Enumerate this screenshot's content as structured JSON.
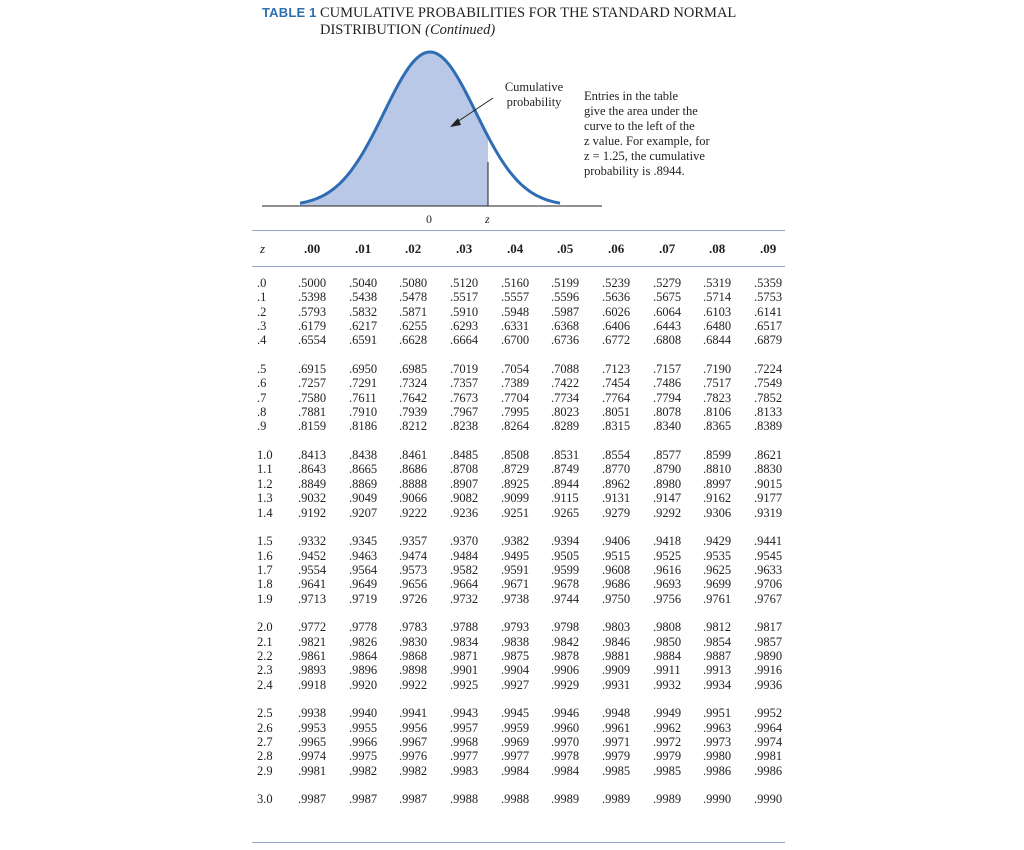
{
  "header": {
    "label": "TABLE 1",
    "title_line1": "CUMULATIVE PROBABILITIES FOR THE STANDARD NORMAL",
    "title_line2": "DISTRIBUTION",
    "title_suffix": "(Continued)"
  },
  "figure": {
    "curve_fill": "#b9c8e6",
    "curve_stroke": "#2e6db4",
    "cumulative_label_line1": "Cumulative",
    "cumulative_label_line2": "probability",
    "zero_label": "0",
    "z_label": "z",
    "note_lines": [
      "Entries in the table",
      "give the area under the",
      "curve to the left of the",
      "z value. For example, for",
      "z = 1.25, the cumulative",
      "probability is .8944."
    ]
  },
  "table": {
    "z_header": "z",
    "columns": [
      ".00",
      ".01",
      ".02",
      ".03",
      ".04",
      ".05",
      ".06",
      ".07",
      ".08",
      ".09"
    ],
    "rows": [
      {
        "z": ".0",
        "values": [
          ".5000",
          ".5040",
          ".5080",
          ".5120",
          ".5160",
          ".5199",
          ".5239",
          ".5279",
          ".5319",
          ".5359"
        ]
      },
      {
        "z": ".1",
        "values": [
          ".5398",
          ".5438",
          ".5478",
          ".5517",
          ".5557",
          ".5596",
          ".5636",
          ".5675",
          ".5714",
          ".5753"
        ]
      },
      {
        "z": ".2",
        "values": [
          ".5793",
          ".5832",
          ".5871",
          ".5910",
          ".5948",
          ".5987",
          ".6026",
          ".6064",
          ".6103",
          ".6141"
        ]
      },
      {
        "z": ".3",
        "values": [
          ".6179",
          ".6217",
          ".6255",
          ".6293",
          ".6331",
          ".6368",
          ".6406",
          ".6443",
          ".6480",
          ".6517"
        ]
      },
      {
        "z": ".4",
        "values": [
          ".6554",
          ".6591",
          ".6628",
          ".6664",
          ".6700",
          ".6736",
          ".6772",
          ".6808",
          ".6844",
          ".6879"
        ]
      },
      {
        "z": ".5",
        "values": [
          ".6915",
          ".6950",
          ".6985",
          ".7019",
          ".7054",
          ".7088",
          ".7123",
          ".7157",
          ".7190",
          ".7224"
        ]
      },
      {
        "z": ".6",
        "values": [
          ".7257",
          ".7291",
          ".7324",
          ".7357",
          ".7389",
          ".7422",
          ".7454",
          ".7486",
          ".7517",
          ".7549"
        ]
      },
      {
        "z": ".7",
        "values": [
          ".7580",
          ".7611",
          ".7642",
          ".7673",
          ".7704",
          ".7734",
          ".7764",
          ".7794",
          ".7823",
          ".7852"
        ]
      },
      {
        "z": ".8",
        "values": [
          ".7881",
          ".7910",
          ".7939",
          ".7967",
          ".7995",
          ".8023",
          ".8051",
          ".8078",
          ".8106",
          ".8133"
        ]
      },
      {
        "z": ".9",
        "values": [
          ".8159",
          ".8186",
          ".8212",
          ".8238",
          ".8264",
          ".8289",
          ".8315",
          ".8340",
          ".8365",
          ".8389"
        ]
      },
      {
        "z": "1.0",
        "values": [
          ".8413",
          ".8438",
          ".8461",
          ".8485",
          ".8508",
          ".8531",
          ".8554",
          ".8577",
          ".8599",
          ".8621"
        ]
      },
      {
        "z": "1.1",
        "values": [
          ".8643",
          ".8665",
          ".8686",
          ".8708",
          ".8729",
          ".8749",
          ".8770",
          ".8790",
          ".8810",
          ".8830"
        ]
      },
      {
        "z": "1.2",
        "values": [
          ".8849",
          ".8869",
          ".8888",
          ".8907",
          ".8925",
          ".8944",
          ".8962",
          ".8980",
          ".8997",
          ".9015"
        ]
      },
      {
        "z": "1.3",
        "values": [
          ".9032",
          ".9049",
          ".9066",
          ".9082",
          ".9099",
          ".9115",
          ".9131",
          ".9147",
          ".9162",
          ".9177"
        ]
      },
      {
        "z": "1.4",
        "values": [
          ".9192",
          ".9207",
          ".9222",
          ".9236",
          ".9251",
          ".9265",
          ".9279",
          ".9292",
          ".9306",
          ".9319"
        ]
      },
      {
        "z": "1.5",
        "values": [
          ".9332",
          ".9345",
          ".9357",
          ".9370",
          ".9382",
          ".9394",
          ".9406",
          ".9418",
          ".9429",
          ".9441"
        ]
      },
      {
        "z": "1.6",
        "values": [
          ".9452",
          ".9463",
          ".9474",
          ".9484",
          ".9495",
          ".9505",
          ".9515",
          ".9525",
          ".9535",
          ".9545"
        ]
      },
      {
        "z": "1.7",
        "values": [
          ".9554",
          ".9564",
          ".9573",
          ".9582",
          ".9591",
          ".9599",
          ".9608",
          ".9616",
          ".9625",
          ".9633"
        ]
      },
      {
        "z": "1.8",
        "values": [
          ".9641",
          ".9649",
          ".9656",
          ".9664",
          ".9671",
          ".9678",
          ".9686",
          ".9693",
          ".9699",
          ".9706"
        ]
      },
      {
        "z": "1.9",
        "values": [
          ".9713",
          ".9719",
          ".9726",
          ".9732",
          ".9738",
          ".9744",
          ".9750",
          ".9756",
          ".9761",
          ".9767"
        ]
      },
      {
        "z": "2.0",
        "values": [
          ".9772",
          ".9778",
          ".9783",
          ".9788",
          ".9793",
          ".9798",
          ".9803",
          ".9808",
          ".9812",
          ".9817"
        ]
      },
      {
        "z": "2.1",
        "values": [
          ".9821",
          ".9826",
          ".9830",
          ".9834",
          ".9838",
          ".9842",
          ".9846",
          ".9850",
          ".9854",
          ".9857"
        ]
      },
      {
        "z": "2.2",
        "values": [
          ".9861",
          ".9864",
          ".9868",
          ".9871",
          ".9875",
          ".9878",
          ".9881",
          ".9884",
          ".9887",
          ".9890"
        ]
      },
      {
        "z": "2.3",
        "values": [
          ".9893",
          ".9896",
          ".9898",
          ".9901",
          ".9904",
          ".9906",
          ".9909",
          ".9911",
          ".9913",
          ".9916"
        ]
      },
      {
        "z": "2.4",
        "values": [
          ".9918",
          ".9920",
          ".9922",
          ".9925",
          ".9927",
          ".9929",
          ".9931",
          ".9932",
          ".9934",
          ".9936"
        ]
      },
      {
        "z": "2.5",
        "values": [
          ".9938",
          ".9940",
          ".9941",
          ".9943",
          ".9945",
          ".9946",
          ".9948",
          ".9949",
          ".9951",
          ".9952"
        ]
      },
      {
        "z": "2.6",
        "values": [
          ".9953",
          ".9955",
          ".9956",
          ".9957",
          ".9959",
          ".9960",
          ".9961",
          ".9962",
          ".9963",
          ".9964"
        ]
      },
      {
        "z": "2.7",
        "values": [
          ".9965",
          ".9966",
          ".9967",
          ".9968",
          ".9969",
          ".9970",
          ".9971",
          ".9972",
          ".9973",
          ".9974"
        ]
      },
      {
        "z": "2.8",
        "values": [
          ".9974",
          ".9975",
          ".9976",
          ".9977",
          ".9977",
          ".9978",
          ".9979",
          ".9979",
          ".9980",
          ".9981"
        ]
      },
      {
        "z": "2.9",
        "values": [
          ".9981",
          ".9982",
          ".9982",
          ".9983",
          ".9984",
          ".9984",
          ".9985",
          ".9985",
          ".9986",
          ".9986"
        ]
      },
      {
        "z": "3.0",
        "values": [
          ".9987",
          ".9987",
          ".9987",
          ".9988",
          ".9988",
          ".9989",
          ".9989",
          ".9989",
          ".9990",
          ".9990"
        ]
      }
    ]
  }
}
